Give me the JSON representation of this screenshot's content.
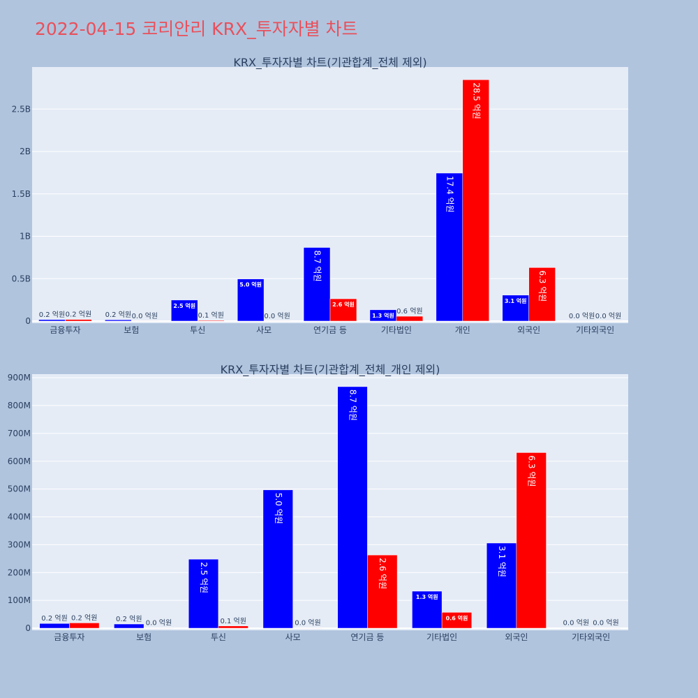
{
  "page_title": "2022-04-15 코리안리 KRX_투자자별 차트",
  "colors": {
    "buy": "#0000ff",
    "sell": "#ff0000",
    "plot_bg": "#e5ecf6",
    "page_bg": "#b0c4de",
    "title": "#e8505b"
  },
  "chart_data": [
    {
      "type": "bar",
      "title": "KRX_투자자별 차트(기관합계_전체 제외)",
      "categories": [
        "금융투자",
        "보험",
        "투신",
        "사모",
        "연기금 등",
        "기타법인",
        "개인",
        "외국인",
        "기타외국인"
      ],
      "series": [
        {
          "values": [
            17000000,
            15000000,
            248000000,
            497000000,
            868000000,
            133000000,
            1745000000,
            306000000,
            1000000
          ],
          "labels": [
            "0.2 억원",
            "0.2 억원",
            "2.5 억원",
            "5.0 억원",
            "8.7 억원",
            "1.3 억원",
            "17.4 억원",
            "3.1 억원",
            "0.0 억원"
          ]
        },
        {
          "values": [
            19000000,
            1000000,
            8000000,
            1000000,
            263000000,
            57000000,
            2846000000,
            631000000,
            1000000
          ],
          "labels": [
            "0.2 억원",
            "0.0 억원",
            "0.1 억원",
            "0.0 억원",
            "2.6 억원",
            "0.6 억원",
            "28.5 억원",
            "6.3 억원",
            "0.0 억원"
          ]
        }
      ],
      "yticks": [
        0,
        500000000,
        1000000000,
        1500000000,
        2000000000,
        2500000000
      ],
      "ytick_labels": [
        "0",
        "0.5B",
        "1B",
        "1.5B",
        "2B",
        "2.5B"
      ],
      "ylim": [
        0,
        2996000000
      ],
      "grid": true,
      "legend": "none"
    },
    {
      "type": "bar",
      "title": "KRX_투자자별 차트(기관합계_전체_개인 제외)",
      "categories": [
        "금융투자",
        "보험",
        "투신",
        "사모",
        "연기금 등",
        "기타법인",
        "외국인",
        "기타외국인"
      ],
      "series": [
        {
          "values": [
            17000000,
            15000000,
            248000000,
            497000000,
            868000000,
            133000000,
            306000000,
            1000000
          ],
          "labels": [
            "0.2 억원",
            "0.2 억원",
            "2.5 억원",
            "5.0 억원",
            "8.7 억원",
            "1.3 억원",
            "3.1 억원",
            "0.0 억원"
          ]
        },
        {
          "values": [
            19000000,
            1000000,
            8000000,
            1000000,
            263000000,
            57000000,
            631000000,
            1000000
          ],
          "labels": [
            "0.2 억원",
            "0.0 억원",
            "0.1 억원",
            "0.0 억원",
            "2.6 억원",
            "0.6 억원",
            "6.3 억원",
            "0.0 억원"
          ]
        }
      ],
      "yticks": [
        0,
        100000000,
        200000000,
        300000000,
        400000000,
        500000000,
        600000000,
        700000000,
        800000000,
        900000000
      ],
      "ytick_labels": [
        "0",
        "100M",
        "200M",
        "300M",
        "400M",
        "500M",
        "600M",
        "700M",
        "800M",
        "900M"
      ],
      "ylim": [
        0,
        913000000
      ],
      "grid": true,
      "legend": "none"
    }
  ]
}
